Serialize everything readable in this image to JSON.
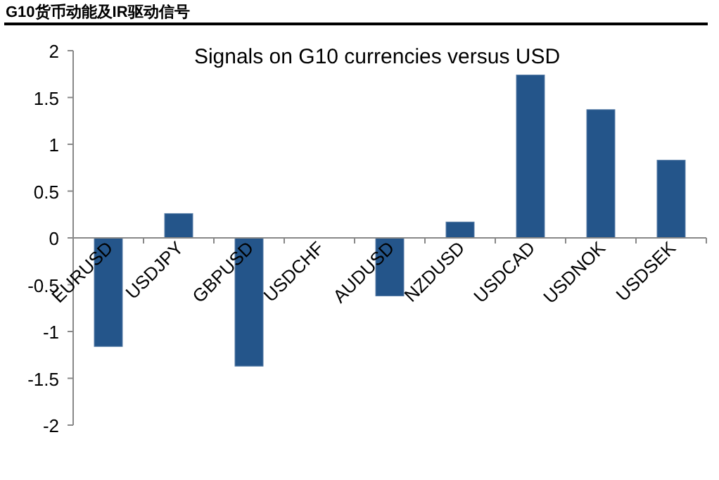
{
  "chart_data": {
    "type": "bar",
    "title": "G10货币动能及IR驱动信号",
    "subtitle": "Signals on G10 currencies versus USD",
    "categories": [
      "EURUSD",
      "USDJPY",
      "GBPUSD",
      "USDCHF",
      "AUDUSD",
      "NZDUSD",
      "USDCAD",
      "USDNOK",
      "USDSEK"
    ],
    "values": [
      -1.16,
      0.26,
      -1.37,
      0,
      -0.62,
      0.17,
      1.74,
      1.37,
      0.83
    ],
    "color": "#24558a",
    "ylim": [
      -2,
      2
    ],
    "yticks": [
      -2,
      -1.5,
      -1,
      -0.5,
      0,
      0.5,
      1,
      1.5,
      2
    ],
    "grid": false
  }
}
